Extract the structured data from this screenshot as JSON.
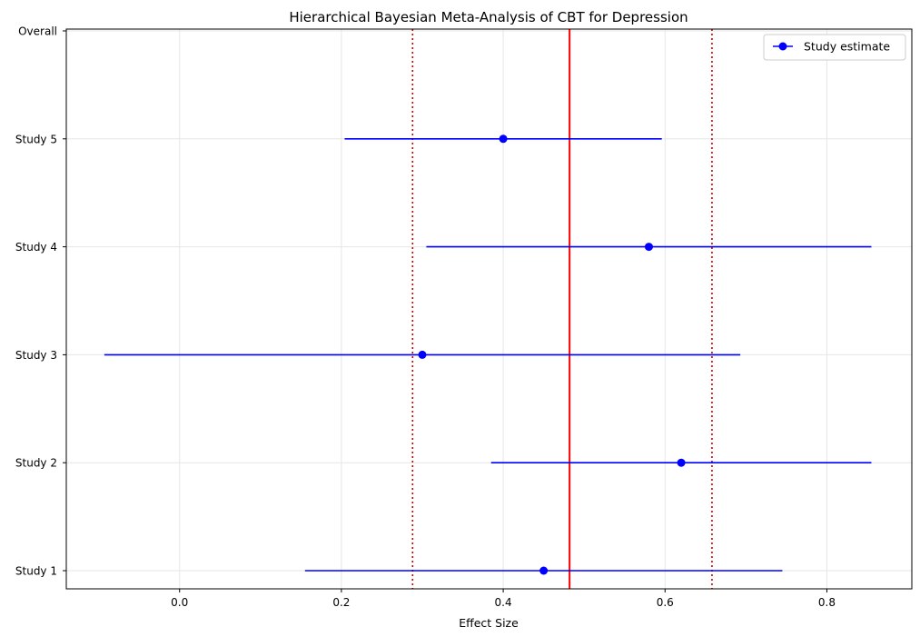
{
  "chart_data": {
    "type": "scatter",
    "title": "Hierarchical Bayesian Meta-Analysis of CBT for Depression",
    "xlabel": "Effect Size",
    "ylabel": "",
    "xlim": [
      -0.14,
      0.905
    ],
    "x_ticks": [
      0.0,
      0.2,
      0.4,
      0.6,
      0.8
    ],
    "x_tick_labels": [
      "0.0",
      "0.2",
      "0.4",
      "0.6",
      "0.8"
    ],
    "y_categories": [
      "Study 1",
      "Study 2",
      "Study 3",
      "Study 4",
      "Study 5",
      "Overall"
    ],
    "grid": true,
    "legend_position": "top-right",
    "series": [
      {
        "name": "Study estimate",
        "color": "#0000ff",
        "points": [
          {
            "label": "Study 1",
            "estimate": 0.45,
            "lower": 0.155,
            "upper": 0.745
          },
          {
            "label": "Study 2",
            "estimate": 0.62,
            "lower": 0.385,
            "upper": 0.855
          },
          {
            "label": "Study 3",
            "estimate": 0.3,
            "lower": -0.093,
            "upper": 0.693
          },
          {
            "label": "Study 4",
            "estimate": 0.58,
            "lower": 0.305,
            "upper": 0.855
          },
          {
            "label": "Study 5",
            "estimate": 0.4,
            "lower": 0.204,
            "upper": 0.596
          }
        ]
      }
    ],
    "reference_lines": [
      {
        "kind": "pooled-mean",
        "value": 0.482,
        "color": "#ff0000",
        "style": "solid"
      },
      {
        "kind": "interval-lower",
        "value": 0.288,
        "color": "#cc0000",
        "style": "dotted"
      },
      {
        "kind": "interval-upper",
        "value": 0.658,
        "color": "#cc0000",
        "style": "dotted"
      }
    ]
  }
}
